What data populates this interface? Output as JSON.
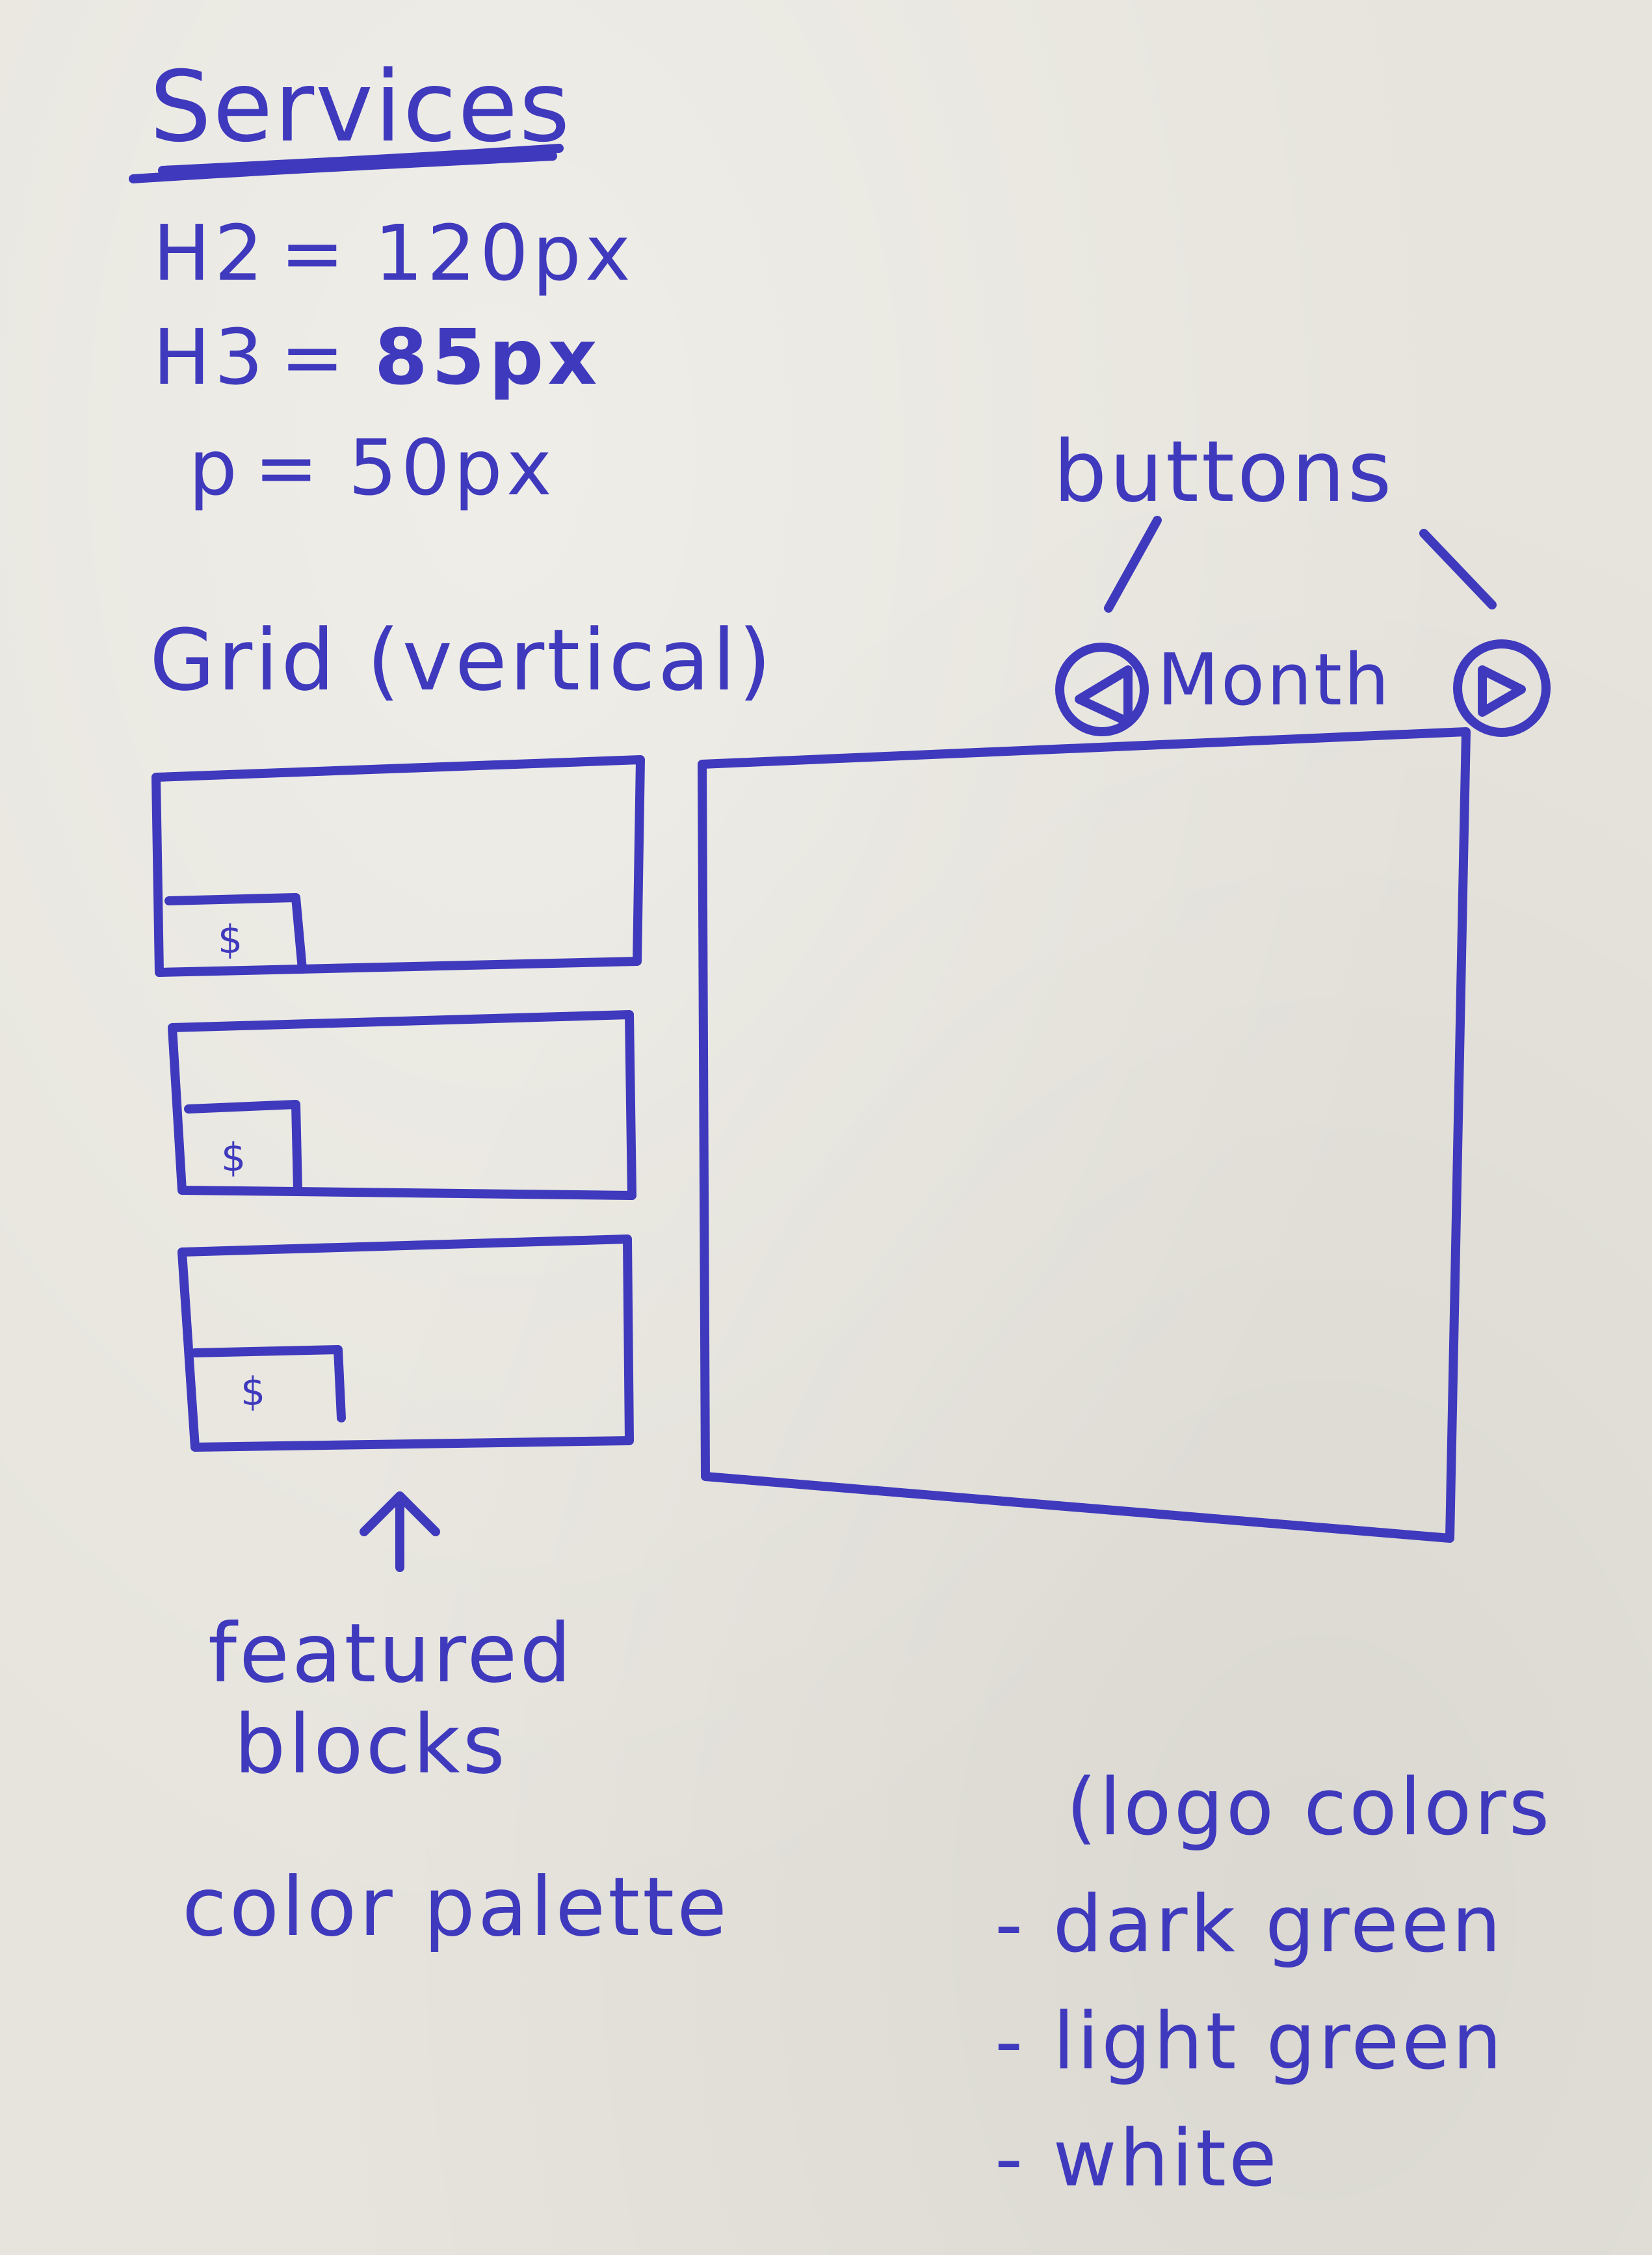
{
  "title": "Services",
  "type_sizes": [
    {
      "label": "H2",
      "value": "120px"
    },
    {
      "label": "H3",
      "value": "85px"
    },
    {
      "label": "p",
      "value": "50px"
    }
  ],
  "grid_label": "Grid (vertical)",
  "buttons_label": "buttons",
  "calendar_label": "Month",
  "featured_blocks": {
    "price_symbol": "$",
    "count": 3
  },
  "featured_label_line1": "featured",
  "featured_label_line2": "blocks",
  "palette_label": "color palette",
  "logo_colors_label": "(logo colors",
  "colors": [
    {
      "label": "- dark green"
    },
    {
      "label": "- light green"
    },
    {
      "label": "- white"
    }
  ],
  "ink_color": "#3f39bd",
  "paper_color": "#e6e4dc"
}
